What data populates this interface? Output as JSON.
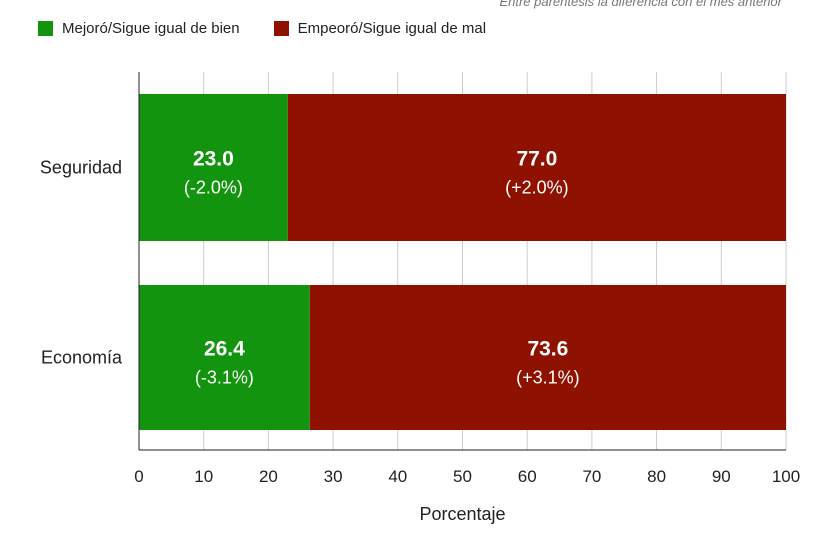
{
  "note": "Entre paréntesis la diferencia con el mes anterior",
  "colors": {
    "positive": "#13940f",
    "negative": "#8f1200",
    "grid": "#cccccc",
    "axis": "#222222",
    "bar_text": "#ffffff"
  },
  "chart_data": {
    "type": "bar",
    "orientation": "horizontal",
    "stacked": true,
    "categories": [
      "Seguridad",
      "Economía"
    ],
    "series": [
      {
        "name": "Mejoró/Sigue igual de bien",
        "values": [
          23.0,
          26.4
        ],
        "changes": [
          "(-2.0%)",
          "(-3.1%)"
        ],
        "color": "#13940f"
      },
      {
        "name": "Empeoró/Sigue igual de mal",
        "values": [
          77.0,
          73.6
        ],
        "changes": [
          "(+2.0%)",
          "(+3.1%)"
        ],
        "color": "#8f1200"
      }
    ],
    "xlabel": "Porcentaje",
    "ylabel": "",
    "xlim": [
      0,
      100
    ],
    "xticks": [
      0,
      10,
      20,
      30,
      40,
      50,
      60,
      70,
      80,
      90,
      100
    ],
    "grid": true,
    "legend_position": "top-left"
  }
}
